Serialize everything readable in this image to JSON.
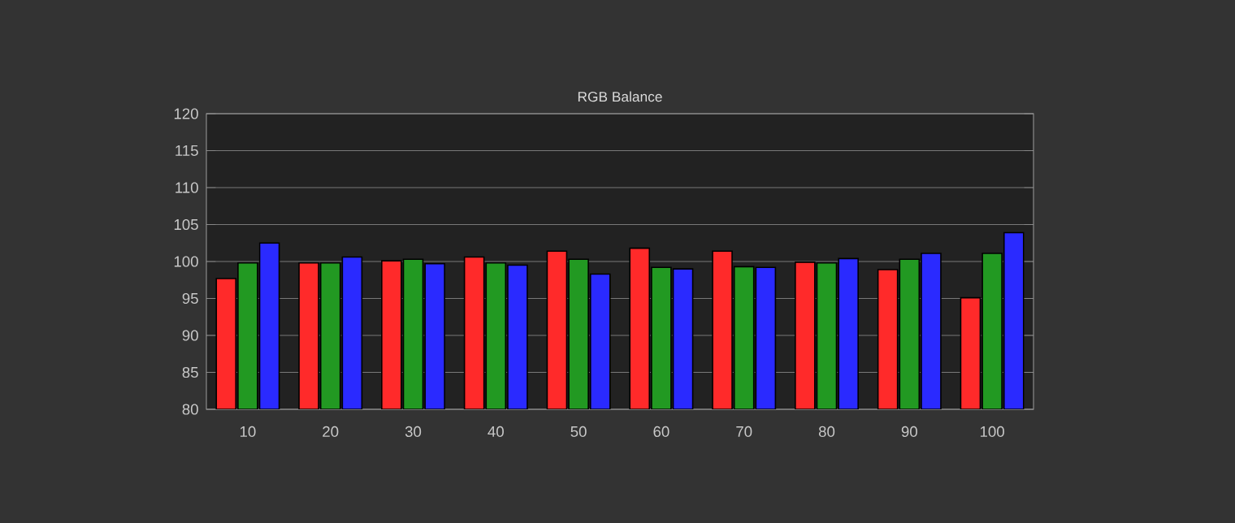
{
  "chart_data": {
    "type": "bar",
    "title": "RGB Balance",
    "categories": [
      "10",
      "20",
      "30",
      "40",
      "50",
      "60",
      "70",
      "80",
      "90",
      "100"
    ],
    "series": [
      {
        "color": "#ff2a2a",
        "values": [
          97.7,
          99.8,
          100.1,
          100.6,
          101.4,
          101.8,
          101.4,
          99.9,
          98.9,
          95.1
        ]
      },
      {
        "color": "#229922",
        "values": [
          99.8,
          99.8,
          100.3,
          99.8,
          100.3,
          99.2,
          99.3,
          99.8,
          100.3,
          101.1
        ]
      },
      {
        "color": "#2a2aff",
        "values": [
          102.5,
          100.6,
          99.7,
          99.5,
          98.3,
          99.0,
          99.2,
          100.4,
          101.1,
          103.9
        ]
      }
    ],
    "ylim": [
      80,
      120
    ],
    "yticks": [
      80,
      85,
      90,
      95,
      100,
      105,
      110,
      115,
      120
    ],
    "grid": "y"
  }
}
